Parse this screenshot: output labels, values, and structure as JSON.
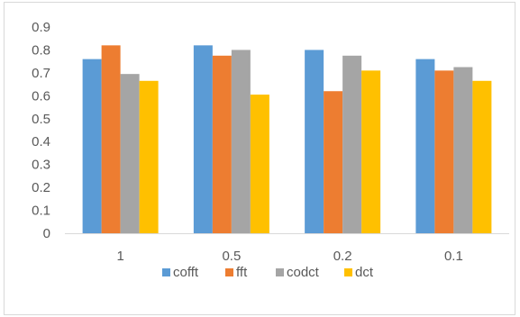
{
  "chart_data": {
    "type": "bar",
    "categories": [
      "1",
      "0.5",
      "0.2",
      "0.1"
    ],
    "series": [
      {
        "name": "cofft",
        "color": "#5b9bd5",
        "values": [
          0.76,
          0.82,
          0.8,
          0.76
        ]
      },
      {
        "name": "fft",
        "color": "#ed7d31",
        "values": [
          0.82,
          0.775,
          0.62,
          0.71
        ]
      },
      {
        "name": "codct",
        "color": "#a5a5a5",
        "values": [
          0.695,
          0.8,
          0.775,
          0.725
        ]
      },
      {
        "name": "dct",
        "color": "#ffc000",
        "values": [
          0.665,
          0.605,
          0.71,
          0.665
        ]
      }
    ],
    "yticks": [
      "0",
      "0.1",
      "0.2",
      "0.3",
      "0.4",
      "0.5",
      "0.6",
      "0.7",
      "0.8",
      "0.9"
    ],
    "ylim": [
      0,
      0.9
    ],
    "title": "",
    "xlabel": "",
    "ylabel": "",
    "grid": false,
    "legend": "bottom"
  }
}
